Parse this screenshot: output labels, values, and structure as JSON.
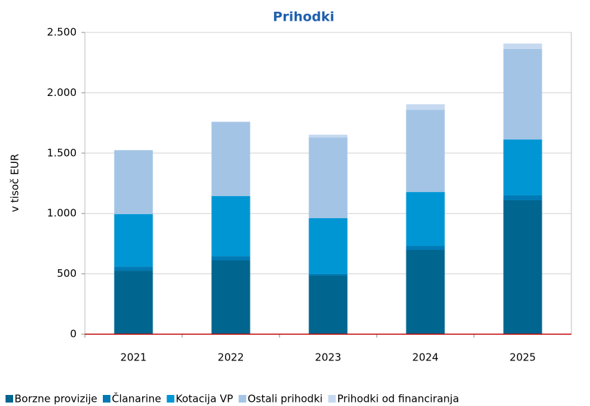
{
  "chart_data": {
    "type": "stacked_bar",
    "title": "Prihodki",
    "y_label": "v tisoč EUR",
    "categories": [
      "2021",
      "2022",
      "2023",
      "2024",
      "2025"
    ],
    "series": [
      {
        "name": "Borzne provizije",
        "color": "#00668f",
        "values": [
          526,
          612,
          486,
          698,
          1110
        ]
      },
      {
        "name": "Članarine",
        "color": "#0079b4",
        "values": [
          34,
          34,
          12,
          34,
          40
        ]
      },
      {
        "name": "Kotacija VP",
        "color": "#0096d4",
        "values": [
          435,
          498,
          463,
          446,
          463
        ]
      },
      {
        "name": "Ostali prihodki",
        "color": "#a3c4e5",
        "values": [
          527,
          612,
          669,
          681,
          750
        ]
      },
      {
        "name": "Prihodki od financiranja",
        "color": "#c6d9f0",
        "values": [
          5,
          6,
          23,
          46,
          45
        ]
      }
    ],
    "ylim": [
      0,
      2500
    ],
    "yticks": [
      0,
      500,
      {
        "value": 1000,
        "label": "1.000"
      },
      {
        "value": 1500,
        "label": "1.500"
      },
      {
        "value": 2000,
        "label": "2.000"
      },
      {
        "value": 2500,
        "label": "2.500"
      }
    ],
    "grid": true,
    "legend": "bottom"
  }
}
